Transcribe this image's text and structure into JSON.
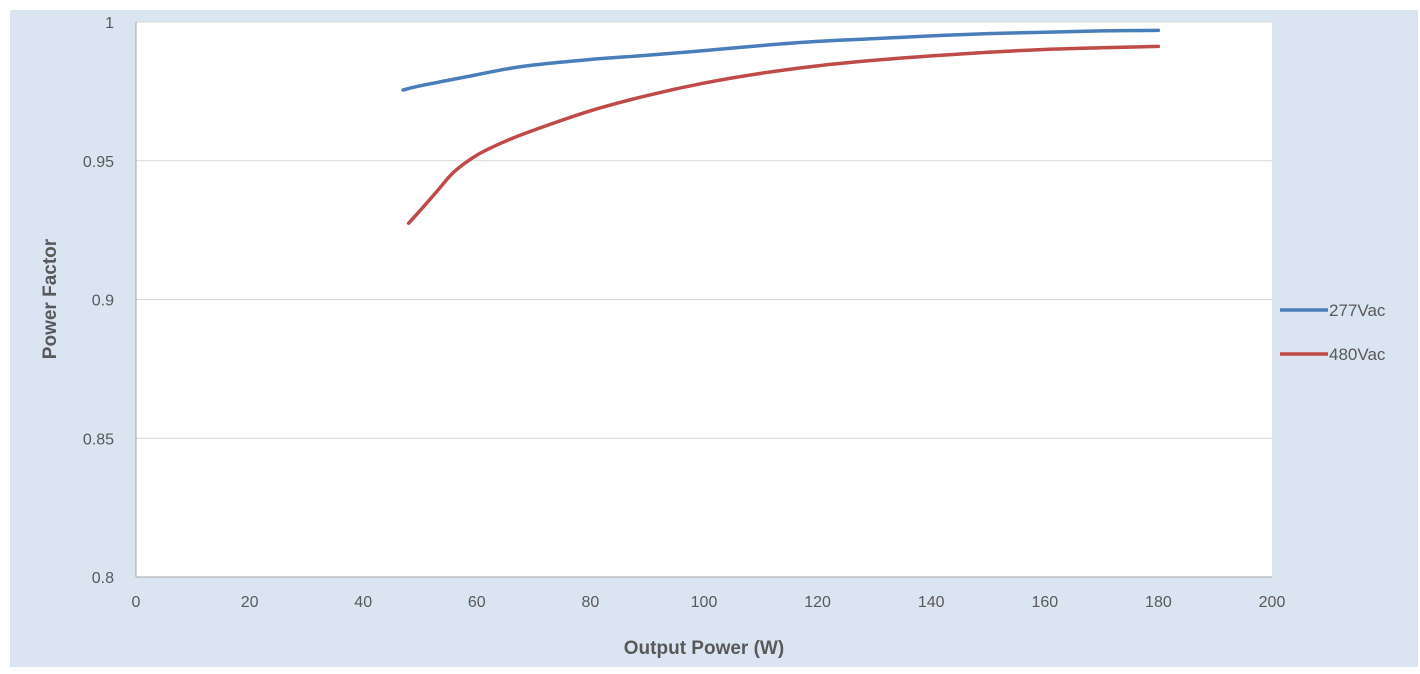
{
  "chart_data": {
    "type": "line",
    "title": "",
    "xlabel": "Output Power (W)",
    "ylabel": "Power Factor",
    "xlim": [
      0,
      200
    ],
    "ylim": [
      0.8,
      1.0
    ],
    "x_ticks": [
      0,
      20,
      40,
      60,
      80,
      100,
      120,
      140,
      160,
      180,
      200
    ],
    "x_tick_labels": [
      "0",
      "20",
      "40",
      "60",
      "80",
      "100",
      "120",
      "140",
      "160",
      "180",
      "200"
    ],
    "y_ticks": [
      0.8,
      0.85,
      0.9,
      0.95,
      1.0
    ],
    "y_tick_labels": [
      "0.8",
      "0.85",
      "0.9",
      "0.95",
      "1"
    ],
    "grid": "horizontal",
    "legend_position": "right",
    "series": [
      {
        "name": "277Vac",
        "color": "#4a7ebb",
        "x": [
          47,
          50,
          55,
          60,
          65,
          70,
          80,
          90,
          100,
          110,
          120,
          130,
          140,
          150,
          160,
          170,
          180
        ],
        "y": [
          0.9755,
          0.977,
          0.979,
          0.981,
          0.983,
          0.9845,
          0.9865,
          0.988,
          0.9897,
          0.9915,
          0.993,
          0.994,
          0.995,
          0.9958,
          0.9963,
          0.9968,
          0.997
        ]
      },
      {
        "name": "480Vac",
        "color": "#be4b48",
        "x": [
          48,
          50,
          53,
          56,
          60,
          65,
          70,
          80,
          90,
          100,
          110,
          120,
          130,
          140,
          150,
          160,
          170,
          180
        ],
        "y": [
          0.9275,
          0.932,
          0.939,
          0.946,
          0.952,
          0.957,
          0.961,
          0.968,
          0.9735,
          0.978,
          0.9815,
          0.9842,
          0.9862,
          0.9878,
          0.9891,
          0.9901,
          0.9907,
          0.9912
        ]
      }
    ]
  },
  "colors": {
    "chart_area_bg": "#dbe5f1",
    "plot_area_bg": "#ffffff",
    "gridline": "#d9d9d9",
    "axis_line": "#a6a6a6"
  }
}
